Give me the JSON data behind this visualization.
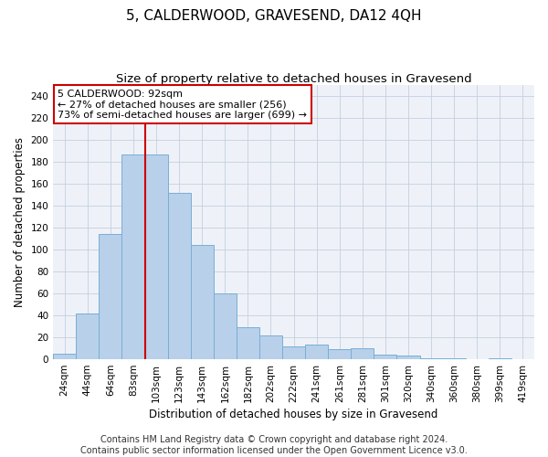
{
  "title": "5, CALDERWOOD, GRAVESEND, DA12 4QH",
  "subtitle": "Size of property relative to detached houses in Gravesend",
  "xlabel": "Distribution of detached houses by size in Gravesend",
  "ylabel": "Number of detached properties",
  "categories": [
    "24sqm",
    "44sqm",
    "64sqm",
    "83sqm",
    "103sqm",
    "123sqm",
    "143sqm",
    "162sqm",
    "182sqm",
    "202sqm",
    "222sqm",
    "241sqm",
    "261sqm",
    "281sqm",
    "301sqm",
    "320sqm",
    "340sqm",
    "360sqm",
    "380sqm",
    "399sqm",
    "419sqm"
  ],
  "values": [
    5,
    42,
    114,
    187,
    187,
    152,
    104,
    60,
    29,
    22,
    12,
    13,
    9,
    10,
    4,
    3,
    1,
    1,
    0,
    1,
    0
  ],
  "bar_color": "#b8d0ea",
  "bar_edge_color": "#7aaed6",
  "vline_x_index": 3.5,
  "vline_color": "#cc0000",
  "annotation_text": "5 CALDERWOOD: 92sqm\n← 27% of detached houses are smaller (256)\n73% of semi-detached houses are larger (699) →",
  "annotation_box_color": "#ffffff",
  "annotation_box_edge": "#cc0000",
  "ylim": [
    0,
    250
  ],
  "yticks": [
    0,
    20,
    40,
    60,
    80,
    100,
    120,
    140,
    160,
    180,
    200,
    220,
    240
  ],
  "footer": "Contains HM Land Registry data © Crown copyright and database right 2024.\nContains public sector information licensed under the Open Government Licence v3.0.",
  "plot_bg_color": "#eef2f8",
  "title_fontsize": 11,
  "subtitle_fontsize": 9.5,
  "axis_label_fontsize": 8.5,
  "tick_fontsize": 7.5,
  "footer_fontsize": 7
}
